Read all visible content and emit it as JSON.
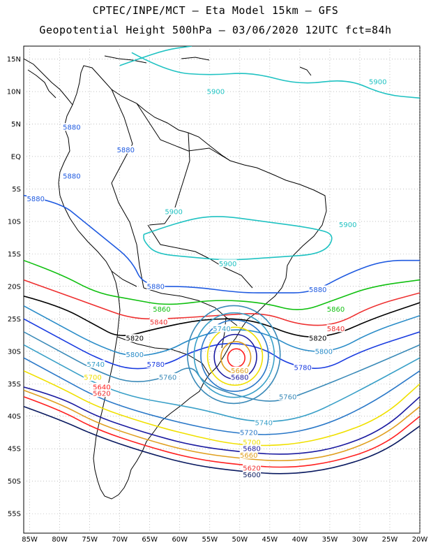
{
  "header": {
    "line1": "CPTEC/INPE/MCT –  Eta Model 15km – GFS",
    "line2": "Geopotential Height 500hPa – 03/06/2020 12UTC fct=84h"
  },
  "axes": {
    "lat_labels": [
      "15N",
      "10N",
      "5N",
      "EQ",
      "5S",
      "10S",
      "15S",
      "20S",
      "25S",
      "30S",
      "35S",
      "40S",
      "45S",
      "50S",
      "55S"
    ],
    "lon_labels": [
      "85W",
      "80W",
      "75W",
      "70W",
      "65W",
      "60W",
      "55W",
      "50W",
      "45W",
      "40W",
      "35W",
      "30W",
      "25W",
      "20W"
    ],
    "lat_range": [
      17,
      -58
    ],
    "lon_range": [
      -86,
      -20
    ],
    "grid": "dotted"
  },
  "colors": {
    "5900": "#1fc2c2",
    "5880": "#1f5ae0",
    "5860": "#10c010",
    "5840": "#ee3030",
    "5820": "#000000",
    "5800": "#2a8cc8",
    "5780": "#1a3ce0",
    "5760": "#3a8ab8",
    "5740": "#3aa0c8",
    "5720": "#2a78c8",
    "5700": "#f0e000",
    "5680": "#1a1aa0",
    "5660": "#e0a020",
    "5640": "#ff2020",
    "5620": "#f03030",
    "5600": "#0a1a60"
  },
  "contour_labels": [
    {
      "text": "5900",
      "color_key": "5900",
      "lon": -54,
      "lat": 10
    },
    {
      "text": "5900",
      "color_key": "5900",
      "lon": -27,
      "lat": 11.5
    },
    {
      "text": "5880",
      "color_key": "5880",
      "lon": -78,
      "lat": 4.5
    },
    {
      "text": "5880",
      "color_key": "5880",
      "lon": -69,
      "lat": 1
    },
    {
      "text": "5880",
      "color_key": "5880",
      "lon": -78,
      "lat": -3
    },
    {
      "text": "5880",
      "color_key": "5880",
      "lon": -84,
      "lat": -6.5
    },
    {
      "text": "5900",
      "color_key": "5900",
      "lon": -61,
      "lat": -8.5
    },
    {
      "text": "5900",
      "color_key": "5900",
      "lon": -32,
      "lat": -10.5
    },
    {
      "text": "5900",
      "color_key": "5900",
      "lon": -52,
      "lat": -16.5
    },
    {
      "text": "5880",
      "color_key": "5880",
      "lon": -64,
      "lat": -20
    },
    {
      "text": "5880",
      "color_key": "5880",
      "lon": -37,
      "lat": -20.5
    },
    {
      "text": "5860",
      "color_key": "5860",
      "lon": -63,
      "lat": -23.5
    },
    {
      "text": "5860",
      "color_key": "5860",
      "lon": -34,
      "lat": -23.5
    },
    {
      "text": "5840",
      "color_key": "5840",
      "lon": -63.5,
      "lat": -25.5
    },
    {
      "text": "5840",
      "color_key": "5840",
      "lon": -34,
      "lat": -26.5
    },
    {
      "text": "5820",
      "color_key": "5820",
      "lon": -67.5,
      "lat": -28
    },
    {
      "text": "5820",
      "color_key": "5820",
      "lon": -37,
      "lat": -28
    },
    {
      "text": "5800",
      "color_key": "5800",
      "lon": -67.5,
      "lat": -30.5
    },
    {
      "text": "5800",
      "color_key": "5800",
      "lon": -36,
      "lat": -30
    },
    {
      "text": "5780",
      "color_key": "5780",
      "lon": -64,
      "lat": -32
    },
    {
      "text": "5780",
      "color_key": "5780",
      "lon": -39.5,
      "lat": -32.5
    },
    {
      "text": "5760",
      "color_key": "5760",
      "lon": -62,
      "lat": -34
    },
    {
      "text": "5760",
      "color_key": "5760",
      "lon": -42,
      "lat": -37
    },
    {
      "text": "5740",
      "color_key": "5740",
      "lon": -74,
      "lat": -32
    },
    {
      "text": "5740",
      "color_key": "5740",
      "lon": -53,
      "lat": -26.5
    },
    {
      "text": "5740",
      "color_key": "5740",
      "lon": -46,
      "lat": -41
    },
    {
      "text": "5720",
      "color_key": "5720",
      "lon": -48.5,
      "lat": -42.5
    },
    {
      "text": "5700",
      "color_key": "5700",
      "lon": -74.5,
      "lat": -34
    },
    {
      "text": "5700",
      "color_key": "5700",
      "lon": -48,
      "lat": -44
    },
    {
      "text": "5680",
      "color_key": "5680",
      "lon": -50,
      "lat": -34
    },
    {
      "text": "5680",
      "color_key": "5680",
      "lon": -48,
      "lat": -45
    },
    {
      "text": "5660",
      "color_key": "5660",
      "lon": -50,
      "lat": -33
    },
    {
      "text": "5660",
      "color_key": "5660",
      "lon": -48.5,
      "lat": -46
    },
    {
      "text": "5640",
      "color_key": "5640",
      "lon": -73,
      "lat": -35.5
    },
    {
      "text": "5620",
      "color_key": "5620",
      "lon": -73,
      "lat": -36.5
    },
    {
      "text": "5620",
      "color_key": "5620",
      "lon": -48,
      "lat": -48
    },
    {
      "text": "5600",
      "color_key": "5600",
      "lon": -48,
      "lat": -49
    }
  ]
}
